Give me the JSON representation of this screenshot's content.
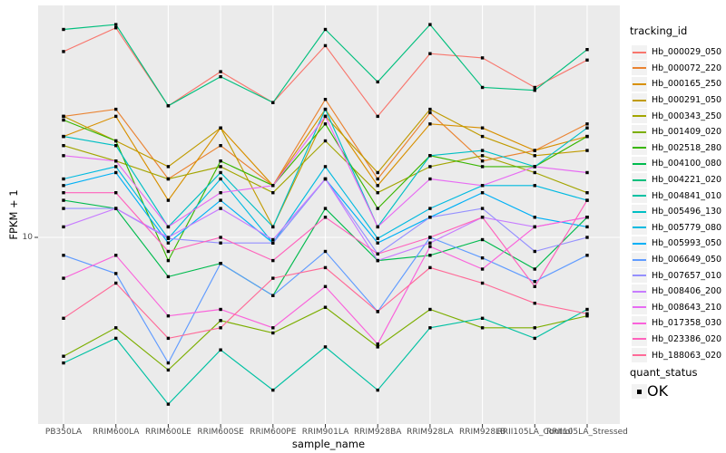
{
  "chart_data": {
    "type": "line",
    "title": "",
    "xlabel": "sample_name",
    "ylabel": "FPKM + 1",
    "y_scale": "log10",
    "y_tick_labels": [
      "10"
    ],
    "y_tick_values": [
      10
    ],
    "ylim": [
      1.9,
      82
    ],
    "grid": "major-on-light-gray-panel",
    "panel_color": "#EBEBEB",
    "gridline_color": "#FFFFFF",
    "point_color": "#000000",
    "point_shape": "square",
    "legend_position": "right",
    "categories": [
      "PB350LA",
      "RRIM600LA",
      "RRIM600LE",
      "RRIM600SE",
      "RRIM600PE",
      "RRIM901LA",
      "RRIM928BA",
      "RRIM928LA",
      "RRIM928LB",
      "RRII105LA_Control",
      "RRII105LA_Stressed"
    ],
    "series": [
      {
        "name": "Hb_000029_050",
        "color": "#F8766D",
        "values": [
          54,
          67,
          33,
          45,
          34,
          57,
          30,
          53,
          51,
          39,
          50
        ]
      },
      {
        "name": "Hb_000072_220",
        "color": "#EA8331",
        "values": [
          30,
          32,
          17,
          23,
          16,
          35,
          17,
          31,
          20,
          22,
          28
        ]
      },
      {
        "name": "Hb_000165_250",
        "color": "#D89000",
        "values": [
          25,
          30,
          14,
          27,
          16,
          32,
          16,
          28,
          27,
          22,
          25
        ]
      },
      {
        "name": "Hb_000291_050",
        "color": "#C09B00",
        "values": [
          30,
          24,
          19,
          27,
          11,
          30,
          18,
          32,
          25,
          21,
          22
        ]
      },
      {
        "name": "Hb_000343_250",
        "color": "#A3A500",
        "values": [
          23,
          20,
          17,
          19,
          15,
          24,
          15,
          19,
          21,
          18,
          15
        ]
      },
      {
        "name": "Hb_001409_020",
        "color": "#7CAE00",
        "values": [
          3.4,
          4.4,
          3.0,
          4.7,
          4.2,
          5.3,
          3.7,
          5.2,
          4.4,
          4.4,
          4.9
        ]
      },
      {
        "name": "Hb_002518_280",
        "color": "#39B600",
        "values": [
          29,
          24,
          8.1,
          20,
          16,
          28,
          13,
          21,
          19,
          19,
          25
        ]
      },
      {
        "name": "Hb_004100_080",
        "color": "#00BB4E",
        "values": [
          14,
          13,
          7.0,
          7.9,
          5.9,
          13,
          8.1,
          8.5,
          9.8,
          7.5,
          12
        ]
      },
      {
        "name": "Hb_004221_020",
        "color": "#00BF7D",
        "values": [
          66,
          69,
          33,
          43,
          34,
          66,
          41,
          69,
          39,
          38,
          55
        ]
      },
      {
        "name": "Hb_004841_010",
        "color": "#00C1A3",
        "values": [
          3.2,
          4.0,
          2.2,
          3.6,
          2.5,
          3.7,
          2.5,
          4.4,
          4.8,
          4.0,
          5.2
        ]
      },
      {
        "name": "Hb_005496_130",
        "color": "#00BFC4",
        "values": [
          25,
          23,
          11,
          18,
          11,
          32,
          11,
          21,
          22,
          19,
          27
        ]
      },
      {
        "name": "Hb_005779_080",
        "color": "#00BAE0",
        "values": [
          17,
          19,
          9.9,
          17,
          9.5,
          19,
          9.9,
          13,
          16,
          16,
          14
        ]
      },
      {
        "name": "Hb_005993_050",
        "color": "#00B0F6",
        "values": [
          16,
          18,
          9.5,
          14,
          9.5,
          17,
          9.5,
          12,
          15,
          12,
          11
        ]
      },
      {
        "name": "Hb_006649_050",
        "color": "#619CFF",
        "values": [
          8.5,
          7.2,
          3.2,
          7.9,
          5.9,
          8.8,
          5.1,
          10,
          8.3,
          6.7,
          8.5
        ]
      },
      {
        "name": "Hb_007657_010",
        "color": "#9590FF",
        "values": [
          13,
          13,
          9.9,
          9.5,
          9.5,
          17,
          8.6,
          12,
          13,
          8.8,
          10
        ]
      },
      {
        "name": "Hb_008406_200",
        "color": "#C77CFF",
        "values": [
          11,
          13,
          10,
          13,
          9.8,
          17,
          8.1,
          9.5,
          12,
          11,
          12
        ]
      },
      {
        "name": "Hb_008643_210",
        "color": "#E76BF3",
        "values": [
          21,
          20,
          11,
          15,
          16,
          30,
          11,
          17,
          16,
          19,
          18
        ]
      },
      {
        "name": "Hb_017358_030",
        "color": "#FA62DB",
        "values": [
          6.9,
          8.5,
          4.9,
          5.2,
          4.4,
          6.4,
          3.8,
          9.2,
          7.5,
          11,
          12
        ]
      },
      {
        "name": "Hb_023386_020",
        "color": "#FF62BC",
        "values": [
          15,
          15,
          8.8,
          10,
          8.1,
          12,
          8.6,
          10,
          12,
          6.4,
          14
        ]
      },
      {
        "name": "Hb_188063_020",
        "color": "#FF6A98",
        "values": [
          4.8,
          6.6,
          4.0,
          4.4,
          6.9,
          7.6,
          5.1,
          7.6,
          6.6,
          5.5,
          5.0
        ]
      }
    ]
  },
  "axes": {
    "x_title": "sample_name",
    "y_title": "FPKM + 1",
    "y_tick": "10"
  },
  "legend": {
    "title": "tracking_id"
  },
  "legend2": {
    "title": "quant_status",
    "items": [
      {
        "label": "OK"
      }
    ]
  }
}
